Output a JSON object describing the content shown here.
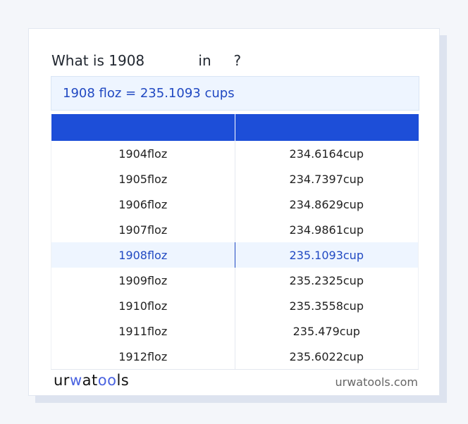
{
  "title": "What is 1908            in     ?",
  "result": "1908 floz = 235.1093 cups",
  "table": {
    "headers": [
      "",
      ""
    ],
    "rows": [
      [
        "1904floz",
        "234.6164cup"
      ],
      [
        "1905floz",
        "234.7397cup"
      ],
      [
        "1906floz",
        "234.8629cup"
      ],
      [
        "1907floz",
        "234.9861cup"
      ],
      [
        "1908floz",
        "235.1093cup"
      ],
      [
        "1909floz",
        "235.2325cup"
      ],
      [
        "1910floz",
        "235.3558cup"
      ],
      [
        "1911floz",
        "235.479cup"
      ],
      [
        "1912floz",
        "235.6022cup"
      ]
    ],
    "highlighted_index": 4
  },
  "footer": {
    "logo": "urwatools",
    "site": "urwatools.com"
  },
  "colors": {
    "accent": "#1d4ed8",
    "highlight_bg": "#eef5ff",
    "highlight_text": "#2149c2"
  }
}
